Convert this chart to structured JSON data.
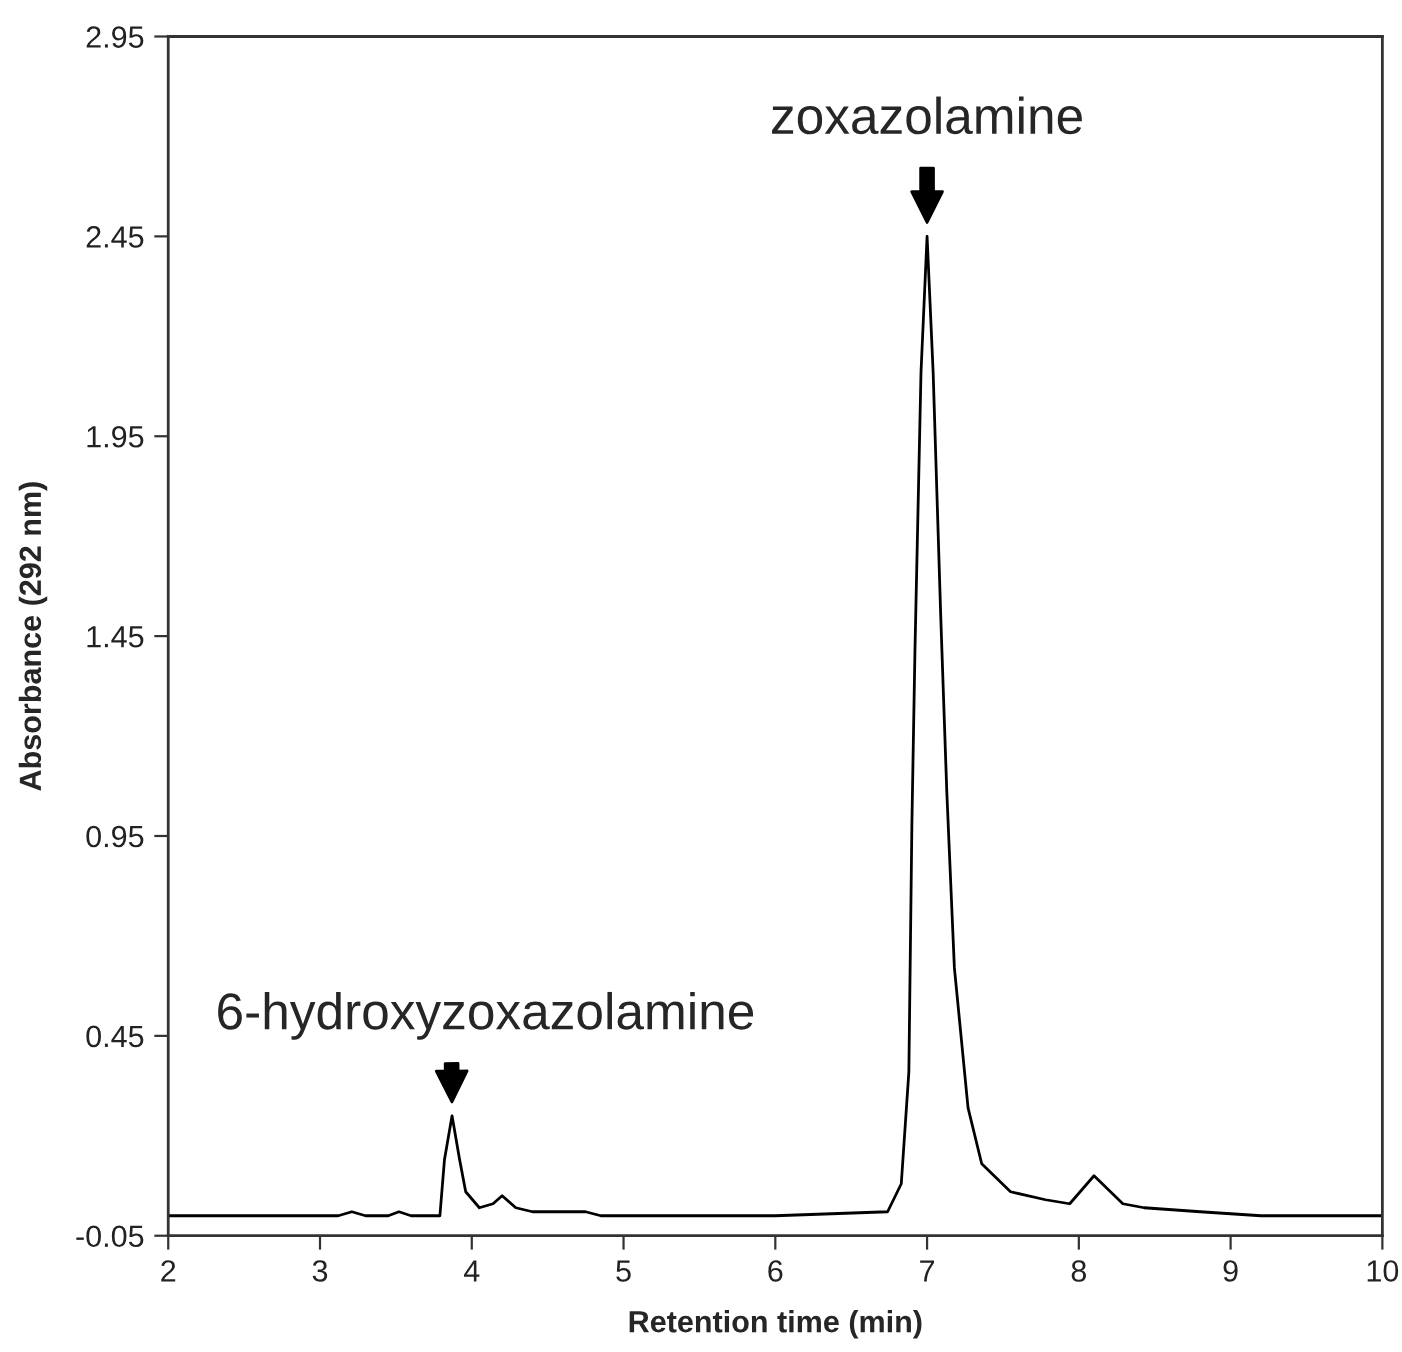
{
  "chart_data": {
    "type": "line",
    "xlabel": "Retention time (min)",
    "ylabel": "Absorbance (292 nm)",
    "series": [
      {
        "color": "#000000",
        "x": [
          2.0,
          3.0,
          3.12,
          3.21,
          3.3,
          3.45,
          3.52,
          3.6,
          3.79,
          3.82,
          3.87,
          3.92,
          3.96,
          4.05,
          4.14,
          4.2,
          4.29,
          4.4,
          4.47,
          4.75,
          4.85,
          6.0,
          6.74,
          6.83,
          6.88,
          6.9,
          6.92,
          6.96,
          7.0,
          7.04,
          7.09,
          7.13,
          7.18,
          7.27,
          7.36,
          7.55,
          7.78,
          7.94,
          8.1,
          8.29,
          8.43,
          8.8,
          9.2,
          10.0
        ],
        "values": [
          0.0,
          0.0,
          0.0,
          0.01,
          0.0,
          0.0,
          0.01,
          0.0,
          0.0,
          0.14,
          0.25,
          0.14,
          0.06,
          0.02,
          0.03,
          0.05,
          0.02,
          0.01,
          0.01,
          0.01,
          0.0,
          0.0,
          0.01,
          0.08,
          0.36,
          0.98,
          1.41,
          2.11,
          2.45,
          2.11,
          1.5,
          1.06,
          0.62,
          0.27,
          0.13,
          0.06,
          0.04,
          0.03,
          0.1,
          0.03,
          0.02,
          0.01,
          0.0,
          0.0
        ]
      }
    ],
    "xlim": [
      2,
      10
    ],
    "xticks": [
      2,
      3,
      4,
      5,
      6,
      7,
      8,
      9,
      10
    ],
    "ylim": [
      -0.05,
      2.95
    ],
    "yticks": [
      -0.05,
      0.45,
      0.95,
      1.45,
      1.95,
      2.45,
      2.95
    ],
    "annotations": [
      {
        "text": "zoxazolamine",
        "x": 7.0,
        "y": 2.45
      },
      {
        "text": "6-hydroxyzoxazolamine",
        "x": 3.87,
        "y": 0.25
      }
    ],
    "grid": false
  }
}
